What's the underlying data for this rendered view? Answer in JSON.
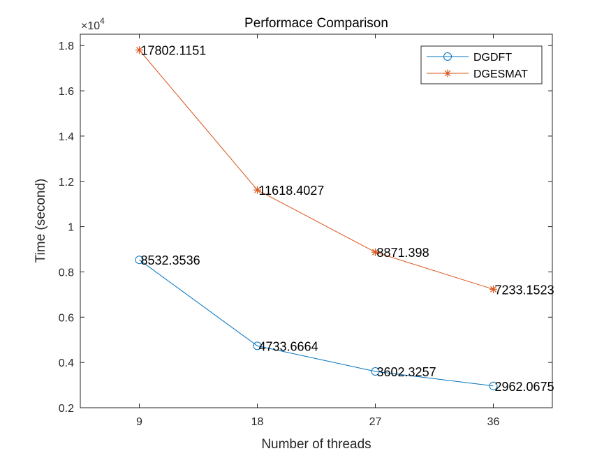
{
  "chart_data": {
    "type": "line",
    "title": "Performace Comparison",
    "xlabel": "Number of threads",
    "ylabel": "Time (second)",
    "x": [
      9,
      18,
      27,
      36
    ],
    "x_tick_labels": [
      "9",
      "18",
      "27",
      "36"
    ],
    "xlim": [
      4.5,
      40.5
    ],
    "ylim": [
      2000,
      18500
    ],
    "y_ticks": [
      2000,
      4000,
      6000,
      8000,
      10000,
      12000,
      14000,
      16000,
      18000
    ],
    "y_tick_labels": [
      "0.2",
      "0.4",
      "0.6",
      "0.8",
      "1",
      "1.2",
      "1.4",
      "1.6",
      "1.8"
    ],
    "y_exponent_base": "10",
    "y_exponent_power": "4",
    "grid": false,
    "legend_position": "top-right",
    "series": [
      {
        "name": "DGDFT",
        "marker": "circle",
        "color": "#0072BD",
        "values": [
          8532.3536,
          4733.6664,
          3602.3257,
          2962.0675
        ],
        "labels": [
          "8532.3536",
          "4733.6664",
          "3602.3257",
          "2962.0675"
        ]
      },
      {
        "name": "DGESMAT",
        "marker": "asterisk",
        "color": "#D95319",
        "values": [
          17802.1151,
          11618.4027,
          8871.398,
          7233.1523
        ],
        "labels": [
          "17802.1151",
          "11618.4027",
          "8871.398",
          "7233.1523"
        ]
      }
    ]
  }
}
